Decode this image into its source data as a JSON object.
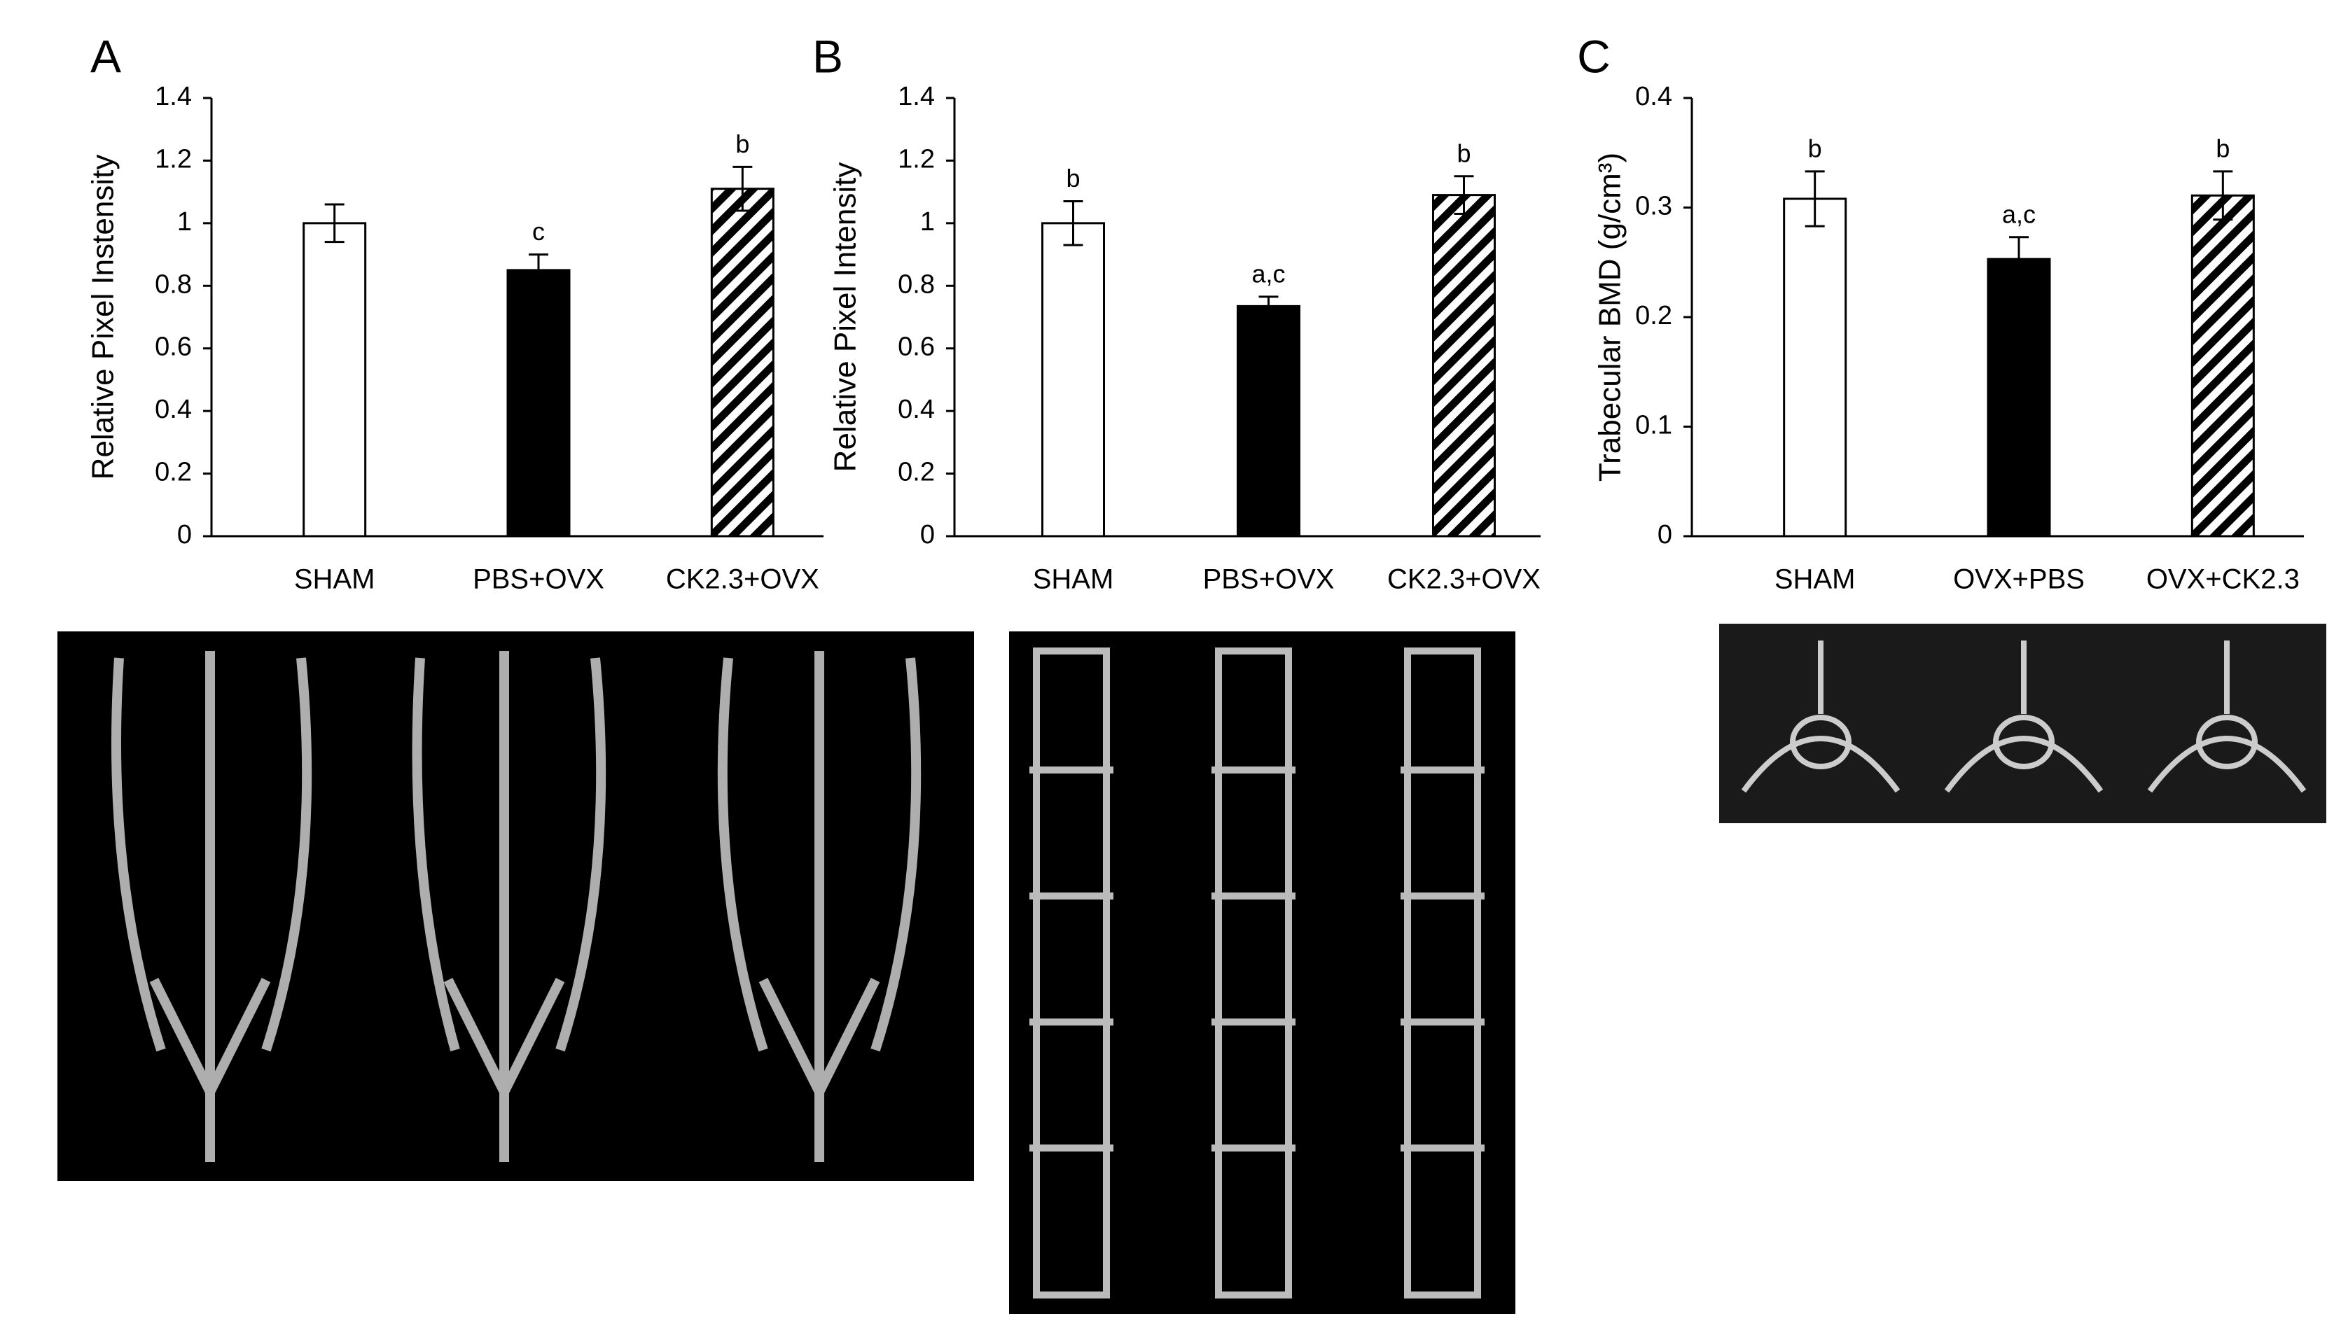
{
  "chart_data": [
    {
      "type": "bar",
      "panel": "A",
      "ylabel": "Relative Pixel Instensity",
      "categories": [
        "SHAM",
        "PBS+OVX",
        "CK2.3+OVX"
      ],
      "values": [
        1.0,
        0.85,
        1.11
      ],
      "errors": [
        0.06,
        0.05,
        0.07
      ],
      "bar_labels": [
        null,
        "c",
        "b"
      ],
      "fills": [
        "open",
        "solid",
        "hatch"
      ],
      "ylim": [
        0,
        1.4
      ],
      "yticks": [
        0,
        0.2,
        0.4,
        0.6,
        0.8,
        1,
        1.2,
        1.4
      ]
    },
    {
      "type": "bar",
      "panel": "B",
      "ylabel": "Relative Pixel Intensity",
      "categories": [
        "SHAM",
        "PBS+OVX",
        "CK2.3+OVX"
      ],
      "values": [
        1.0,
        0.735,
        1.09
      ],
      "errors": [
        0.07,
        0.03,
        0.06
      ],
      "bar_labels": [
        "b",
        "a,c",
        "b"
      ],
      "fills": [
        "open",
        "solid",
        "hatch"
      ],
      "ylim": [
        0,
        1.4
      ],
      "yticks": [
        0,
        0.2,
        0.4,
        0.6,
        0.8,
        1,
        1.2,
        1.4
      ]
    },
    {
      "type": "bar",
      "panel": "C",
      "ylabel": "Trabecular BMD (g/cm³)",
      "categories": [
        "SHAM",
        "OVX+PBS",
        "OVX+CK2.3"
      ],
      "values": [
        0.308,
        0.253,
        0.311
      ],
      "errors": [
        0.025,
        0.02,
        0.022
      ],
      "bar_labels": [
        "b",
        "a,c",
        "b"
      ],
      "fills": [
        "open",
        "solid",
        "hatch"
      ],
      "ylim": [
        0,
        0.4
      ],
      "yticks": [
        0,
        0.1,
        0.2,
        0.3,
        0.4
      ]
    }
  ]
}
